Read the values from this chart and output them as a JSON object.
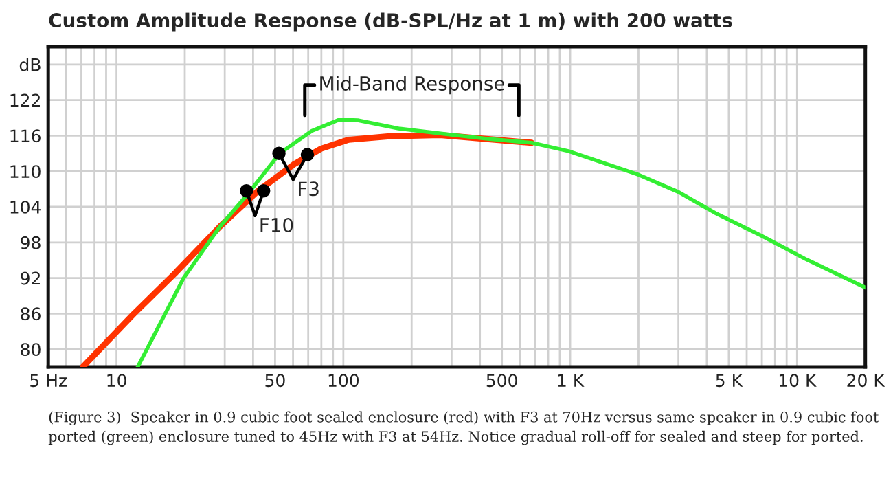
{
  "chart_data": {
    "type": "line",
    "title": "Custom Amplitude Response (dB-SPL/Hz at 1 m) with 200 watts",
    "log": "x",
    "grid": true,
    "legend": false,
    "line_style": "solid",
    "xlim": [
      5,
      20000
    ],
    "xticks": [
      {
        "value": 5,
        "label": "5 Hz"
      },
      10,
      50,
      100,
      500,
      {
        "value": 1000,
        "label": "1 K"
      },
      {
        "value": 5000,
        "label": "5 K"
      },
      {
        "value": 10000,
        "label": "10 K"
      },
      {
        "value": 20000,
        "label": "20 K"
      }
    ],
    "ylim": [
      77,
      131
    ],
    "yticks": [
      80,
      86,
      92,
      98,
      104,
      110,
      116,
      122,
      {
        "value": 128,
        "label": "dB"
      }
    ],
    "series": [
      {
        "color": "#ff3300",
        "x": [
          7.1,
          11.8,
          18,
          28.6,
          41.5,
          60.2,
          79.7,
          105,
          160,
          267,
          676
        ],
        "values": [
          77,
          85.8,
          92.7,
          100.7,
          106.5,
          111.1,
          113.8,
          115.3,
          115.9,
          116.1,
          114.8
        ]
      },
      {
        "color": "#33ee33",
        "x": [
          12.4,
          19.7,
          28.6,
          37.8,
          52.4,
          72.6,
          96,
          115.6,
          175,
          307,
          425,
          676,
          982,
          1974,
          3000,
          4345,
          6920,
          11040,
          20000
        ],
        "values": [
          77,
          91.9,
          100.7,
          106.1,
          113,
          116.8,
          118.7,
          118.6,
          117.2,
          116.1,
          115.5,
          114.8,
          113.4,
          109.5,
          106.5,
          103,
          99.2,
          95.1,
          90.4
        ]
      },
      {
        "type": "scatter",
        "color": "#000000",
        "x": [
          37.4,
          44.5,
          52,
          69.4
        ],
        "values": [
          106.7,
          106.7,
          113,
          112.8
        ]
      }
    ],
    "annotations": [
      "F10",
      "F3",
      "Mid-Band Response",
      "(Figure 3)  Speaker in 0.9 cubic foot sealed enclosure (red) with F3 at 70Hz versus same speaker in 0.9 cubic foot ported (green) enclosure tuned to 45Hz with F3 at 54Hz. Notice gradual roll-off for sealed and steep for ported."
    ]
  }
}
